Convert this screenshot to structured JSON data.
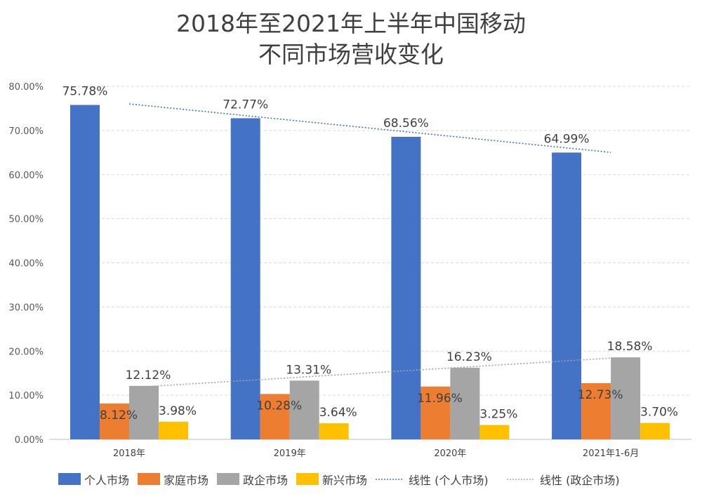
{
  "chart_data": {
    "type": "bar",
    "title": [
      "2018年至2021年上半年中国移动",
      "不同市场营收变化"
    ],
    "categories": [
      "2018年",
      "2019年",
      "2020年",
      "2021年1-6月"
    ],
    "series": [
      {
        "name": "个人市场",
        "color": "#4472C4",
        "values": [
          75.78,
          72.77,
          68.56,
          64.99
        ]
      },
      {
        "name": "家庭市场",
        "color": "#ED7D31",
        "values": [
          8.12,
          10.28,
          11.96,
          12.73
        ]
      },
      {
        "name": "政企市场",
        "color": "#A5A5A5",
        "values": [
          12.12,
          13.31,
          16.23,
          18.58
        ]
      },
      {
        "name": "新兴市场",
        "color": "#FFC000",
        "values": [
          3.98,
          3.64,
          3.25,
          3.7
        ]
      }
    ],
    "trendlines": [
      {
        "name": "线性 (个人市场)",
        "series": 0,
        "type": "linear",
        "color": "#4472C4",
        "style": "dotted"
      },
      {
        "name": "线性 (政企市场)",
        "series": 2,
        "type": "linear",
        "color": "#A5A5A5",
        "style": "dotted"
      }
    ],
    "ylim": [
      0,
      80
    ],
    "yticks": [
      "0.00%",
      "10.00%",
      "20.00%",
      "30.00%",
      "40.00%",
      "50.00%",
      "60.00%",
      "70.00%",
      "80.00%"
    ],
    "grid": true,
    "legend": "bottom",
    "data_label_format": "percent-2dp"
  }
}
